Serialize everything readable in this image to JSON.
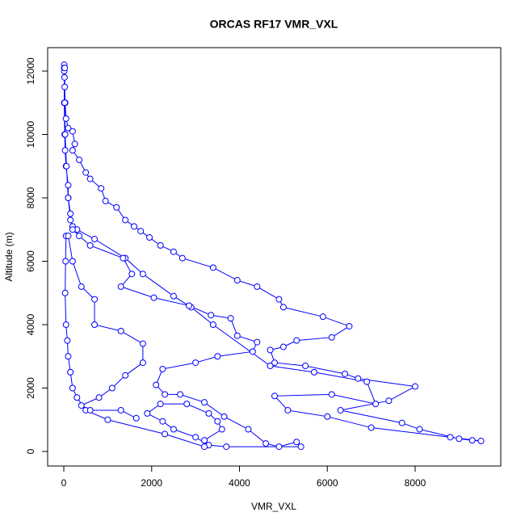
{
  "chart_data": {
    "type": "scatter",
    "title": "ORCAS RF17 VMR_VXL",
    "x_label": "VMR_VXL",
    "y_label": "Altitude (m)",
    "color": "#0000ff",
    "connect": true,
    "xlim": [
      -368,
      9949
    ],
    "ylim": [
      -459,
      12739
    ],
    "xticks": [
      0,
      2000,
      4000,
      6000,
      8000
    ],
    "yticks": [
      0,
      2000,
      4000,
      6000,
      8000,
      10000,
      12000
    ],
    "x": [
      10,
      10,
      15,
      20,
      30,
      50,
      100,
      200,
      250,
      200,
      350,
      500,
      600,
      850,
      950,
      1200,
      1400,
      1600,
      1750,
      1950,
      2200,
      2500,
      2700,
      3400,
      3950,
      4400,
      4900,
      5000,
      5900,
      6500,
      6100,
      5300,
      5000,
      4700,
      4800,
      5500,
      6400,
      6700,
      8000,
      7400,
      6300,
      7700,
      8100,
      9000,
      9300,
      9500,
      8800,
      7000,
      6000,
      5100,
      4800,
      6100,
      7100,
      6900,
      5700,
      4700,
      3400,
      2900,
      2500,
      1800,
      1400,
      700,
      300,
      200,
      150,
      100,
      100,
      50,
      30,
      20,
      10,
      10,
      20,
      20,
      30,
      60,
      100,
      150,
      200,
      350,
      600,
      1350,
      1550,
      1300,
      2050,
      2850,
      3350,
      3800,
      3950,
      4400,
      4300,
      3500,
      3000,
      2250,
      2100,
      2300,
      2650,
      3200,
      3650,
      4200,
      4600,
      4900,
      5300,
      5400,
      3700,
      3300,
      3000,
      2500,
      2250,
      1900,
      2200,
      2800,
      3300,
      3500,
      3600,
      3200,
      3200,
      2300,
      1000,
      500,
      300,
      200,
      150,
      100,
      80,
      50,
      30,
      40,
      50,
      100,
      200,
      400,
      700,
      700,
      1300,
      1800,
      1800,
      1400,
      1100,
      800,
      400,
      600,
      1300,
      1650
    ],
    "y": [
      12200,
      12000,
      11800,
      11500,
      11000,
      10500,
      10200,
      10100,
      9700,
      9500,
      9200,
      8800,
      8600,
      8300,
      7900,
      7700,
      7300,
      7100,
      6950,
      6750,
      6500,
      6300,
      6100,
      5800,
      5400,
      5200,
      4800,
      4550,
      4250,
      3950,
      3600,
      3500,
      3300,
      3200,
      2800,
      2700,
      2450,
      2300,
      2050,
      1600,
      1300,
      900,
      700,
      400,
      350,
      330,
      450,
      750,
      1100,
      1300,
      1750,
      1800,
      1500,
      2200,
      2500,
      2700,
      4000,
      4550,
      4900,
      5600,
      6100,
      6700,
      7000,
      7100,
      7300,
      8000,
      8400,
      9000,
      9500,
      10000,
      11000,
      12100,
      12100,
      11000,
      10000,
      9000,
      8000,
      7500,
      7000,
      6800,
      6500,
      6100,
      5600,
      5200,
      4850,
      4600,
      4300,
      4200,
      3650,
      3450,
      3150,
      3000,
      2800,
      2600,
      2100,
      1800,
      1800,
      1550,
      1100,
      700,
      250,
      150,
      300,
      150,
      150,
      200,
      450,
      700,
      950,
      1200,
      1500,
      1500,
      1200,
      950,
      700,
      350,
      150,
      550,
      1000,
      1300,
      1700,
      2000,
      2500,
      3000,
      3500,
      4000,
      5000,
      6000,
      6800,
      6800,
      6000,
      5200,
      4800,
      4000,
      3800,
      3400,
      2800,
      2400,
      2000,
      1700,
      1450,
      1300,
      1300,
      1050
    ]
  }
}
